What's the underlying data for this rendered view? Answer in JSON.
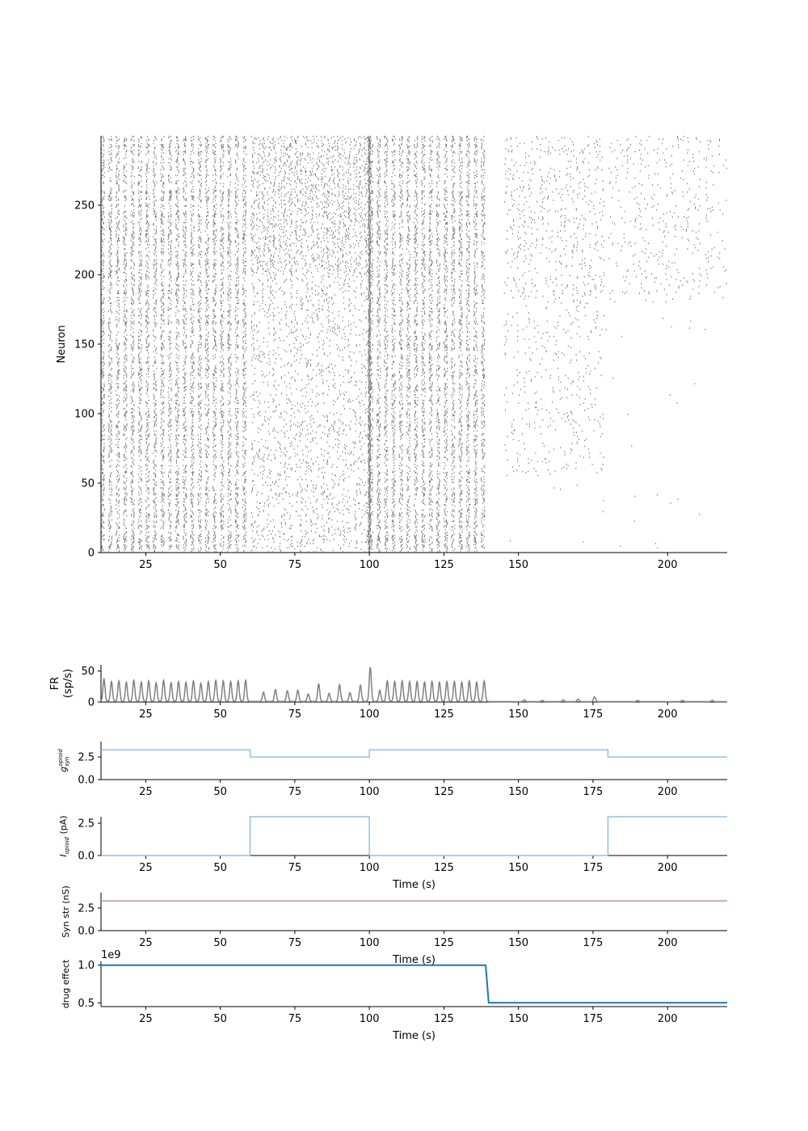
{
  "chart_data": [
    {
      "type": "raster",
      "xlim": [
        10,
        220
      ],
      "ylim": [
        0,
        300
      ],
      "xticks": [
        25,
        50,
        75,
        100,
        125,
        150,
        200
      ],
      "xticks_all": [
        25,
        50,
        75,
        100,
        125,
        150,
        175,
        200
      ],
      "yticks": [
        0,
        50,
        100,
        150,
        200,
        250
      ],
      "xlabel": "",
      "ylabel": "Neuron",
      "color": "#444444",
      "regimes": [
        {
          "start": 10,
          "end": 60,
          "pattern": "synchronized bursts",
          "burst_period": 3.75
        },
        {
          "start": 60,
          "end": 100,
          "pattern": "irregular sparse bursts"
        },
        {
          "start": 100,
          "end": 140,
          "pattern": "synchronized bursts",
          "burst_period": 2.5
        },
        {
          "start": 140,
          "end": 145,
          "pattern": "silent"
        },
        {
          "start": 145,
          "end": 180,
          "pattern": "sparse activity, upper neurons"
        },
        {
          "start": 180,
          "end": 220,
          "pattern": "sparse activity, neurons 180-300"
        }
      ]
    },
    {
      "type": "line",
      "xlim": [
        10,
        220
      ],
      "ylim": [
        0,
        60
      ],
      "yticks": [
        0,
        50
      ],
      "xticks": [
        25,
        50,
        75,
        100,
        125,
        150,
        175,
        200
      ],
      "ylabel_lines": [
        "FR",
        "(sp/s)"
      ],
      "xlabel": "",
      "color": "#808080",
      "peaks": [
        {
          "t": 11,
          "v": 36
        },
        {
          "t": 13.5,
          "v": 32
        },
        {
          "t": 16,
          "v": 33
        },
        {
          "t": 18.5,
          "v": 31
        },
        {
          "t": 21,
          "v": 34
        },
        {
          "t": 23.5,
          "v": 31
        },
        {
          "t": 26,
          "v": 33
        },
        {
          "t": 28.5,
          "v": 30
        },
        {
          "t": 31,
          "v": 34
        },
        {
          "t": 33.5,
          "v": 30
        },
        {
          "t": 36,
          "v": 32
        },
        {
          "t": 38.5,
          "v": 31
        },
        {
          "t": 41,
          "v": 33
        },
        {
          "t": 43.5,
          "v": 29
        },
        {
          "t": 46,
          "v": 32
        },
        {
          "t": 48.5,
          "v": 34
        },
        {
          "t": 51,
          "v": 33
        },
        {
          "t": 53.5,
          "v": 32
        },
        {
          "t": 56,
          "v": 33
        },
        {
          "t": 58.5,
          "v": 34
        },
        {
          "t": 64.5,
          "v": 15
        },
        {
          "t": 68.5,
          "v": 19
        },
        {
          "t": 72.5,
          "v": 17
        },
        {
          "t": 76,
          "v": 18
        },
        {
          "t": 79.5,
          "v": 12
        },
        {
          "t": 83,
          "v": 28
        },
        {
          "t": 86.5,
          "v": 13
        },
        {
          "t": 90,
          "v": 27
        },
        {
          "t": 93.5,
          "v": 14
        },
        {
          "t": 97,
          "v": 26
        },
        {
          "t": 100.3,
          "v": 55
        },
        {
          "t": 103.5,
          "v": 18
        },
        {
          "t": 106,
          "v": 33
        },
        {
          "t": 108.5,
          "v": 32
        },
        {
          "t": 111,
          "v": 33
        },
        {
          "t": 113.5,
          "v": 32
        },
        {
          "t": 116,
          "v": 32
        },
        {
          "t": 118.5,
          "v": 31
        },
        {
          "t": 121,
          "v": 32
        },
        {
          "t": 123.5,
          "v": 31
        },
        {
          "t": 126,
          "v": 32
        },
        {
          "t": 128.5,
          "v": 32
        },
        {
          "t": 131,
          "v": 31
        },
        {
          "t": 133.5,
          "v": 33
        },
        {
          "t": 136,
          "v": 31
        },
        {
          "t": 138.5,
          "v": 33
        },
        {
          "t": 152,
          "v": 3
        },
        {
          "t": 158,
          "v": 2
        },
        {
          "t": 165,
          "v": 3
        },
        {
          "t": 170,
          "v": 4
        },
        {
          "t": 175.5,
          "v": 8
        },
        {
          "t": 190,
          "v": 2
        },
        {
          "t": 205,
          "v": 2
        },
        {
          "t": 215,
          "v": 2
        }
      ]
    },
    {
      "type": "line",
      "xlim": [
        10,
        220
      ],
      "ylim": [
        0,
        4.2
      ],
      "yticks": [
        0.0,
        2.5
      ],
      "ytick_labels": [
        "0.0",
        "2.5"
      ],
      "xticks": [
        25,
        50,
        75,
        100,
        125,
        150,
        175,
        200
      ],
      "ylabel": "g_syn^opioid",
      "ylabel_main": "g",
      "ylabel_sub": "syn",
      "ylabel_sup": "opioid",
      "xlabel": "",
      "color": "#7fb2dc",
      "points": [
        [
          10,
          3.3
        ],
        [
          60,
          3.3
        ],
        [
          60,
          2.5
        ],
        [
          100,
          2.5
        ],
        [
          100,
          3.3
        ],
        [
          180,
          3.3
        ],
        [
          180,
          2.5
        ],
        [
          220,
          2.5
        ]
      ]
    },
    {
      "type": "line",
      "xlim": [
        10,
        220
      ],
      "ylim": [
        0,
        3.0
      ],
      "yticks": [
        0.0,
        2.5
      ],
      "ytick_labels": [
        "0.0",
        "2.5"
      ],
      "xticks": [
        25,
        50,
        75,
        100,
        125,
        150,
        175,
        200
      ],
      "ylabel_main": "I",
      "ylabel_sub": "opioid",
      "ylabel_rest": " (pA)",
      "xlabel": "Time (s)",
      "color": "#7fb2dc",
      "points": [
        [
          10,
          0
        ],
        [
          60,
          0
        ],
        [
          60,
          3
        ],
        [
          100,
          3
        ],
        [
          100,
          0
        ],
        [
          180,
          0
        ],
        [
          180,
          3
        ],
        [
          220,
          3
        ]
      ]
    },
    {
      "type": "line",
      "xlim": [
        10,
        220
      ],
      "ylim": [
        0,
        4.2
      ],
      "yticks": [
        0.0,
        2.5
      ],
      "ytick_labels": [
        "0.0",
        "2.5"
      ],
      "xticks": [
        25,
        50,
        75,
        100,
        125,
        150,
        175,
        200
      ],
      "ylabel": "Syn str (nS)",
      "xlabel": "Time (s)",
      "color": "#b88088",
      "points": [
        [
          10,
          3.3
        ],
        [
          220,
          3.3
        ]
      ]
    },
    {
      "type": "line",
      "xlim": [
        10,
        220
      ],
      "ylim": [
        0.45,
        1.05
      ],
      "yticks": [
        0.5,
        1.0
      ],
      "ytick_labels": [
        "0.5",
        "1.0"
      ],
      "offset_text": "1e9",
      "xticks": [
        25,
        50,
        75,
        100,
        125,
        150,
        175,
        200
      ],
      "ylabel": "drug effect",
      "xlabel": "Time (s)",
      "color": "#1f77b4",
      "points": [
        [
          10,
          1.0
        ],
        [
          139,
          1.0
        ],
        [
          140,
          0.5
        ],
        [
          220,
          0.5
        ]
      ]
    }
  ]
}
